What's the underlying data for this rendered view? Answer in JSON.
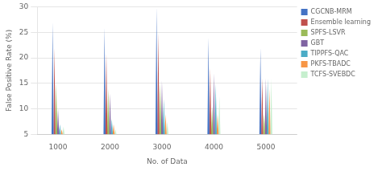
{
  "chart_data": {
    "type": "bar",
    "x": [
      1000,
      2000,
      3000,
      4000,
      5000
    ],
    "series": [
      {
        "name": "CGCNB-MRM",
        "color": "#4472C4",
        "values": [
          27.0,
          26.0,
          30.0,
          24.0,
          22.0
        ]
      },
      {
        "name": "Ensemble learning",
        "color": "#C0504D",
        "values": [
          22.0,
          21.0,
          25.0,
          18.0,
          16.0
        ]
      },
      {
        "name": "SPFS-LSVR",
        "color": "#9BBB59",
        "values": [
          15.0,
          14.0,
          15.0,
          10.5,
          9.0
        ]
      },
      {
        "name": "GBT",
        "color": "#8064A2",
        "values": [
          10.0,
          13.0,
          15.5,
          17.0,
          16.0
        ]
      },
      {
        "name": "TIPPFS-QAC",
        "color": "#4BACC6",
        "values": [
          7.0,
          8.0,
          12.0,
          15.0,
          16.0
        ]
      },
      {
        "name": "PKFS-TBADC",
        "color": "#F79646",
        "values": [
          6.0,
          7.0,
          9.0,
          9.0,
          14.0
        ]
      },
      {
        "name": "TCFS-SVEBDC",
        "color": "#C6EFCE",
        "values": [
          6.5,
          6.0,
          7.5,
          12.5,
          16.0
        ]
      }
    ],
    "xlabel": "No. of Data",
    "ylabel": "False Positive Rate (%)",
    "xlim": [
      600,
      5600
    ],
    "ylim": [
      5,
      30
    ],
    "xticks": [
      1000,
      2000,
      3000,
      4000,
      5000
    ],
    "yticks": [
      5,
      10,
      15,
      20,
      25,
      30
    ],
    "grid": true,
    "legend": "right"
  }
}
